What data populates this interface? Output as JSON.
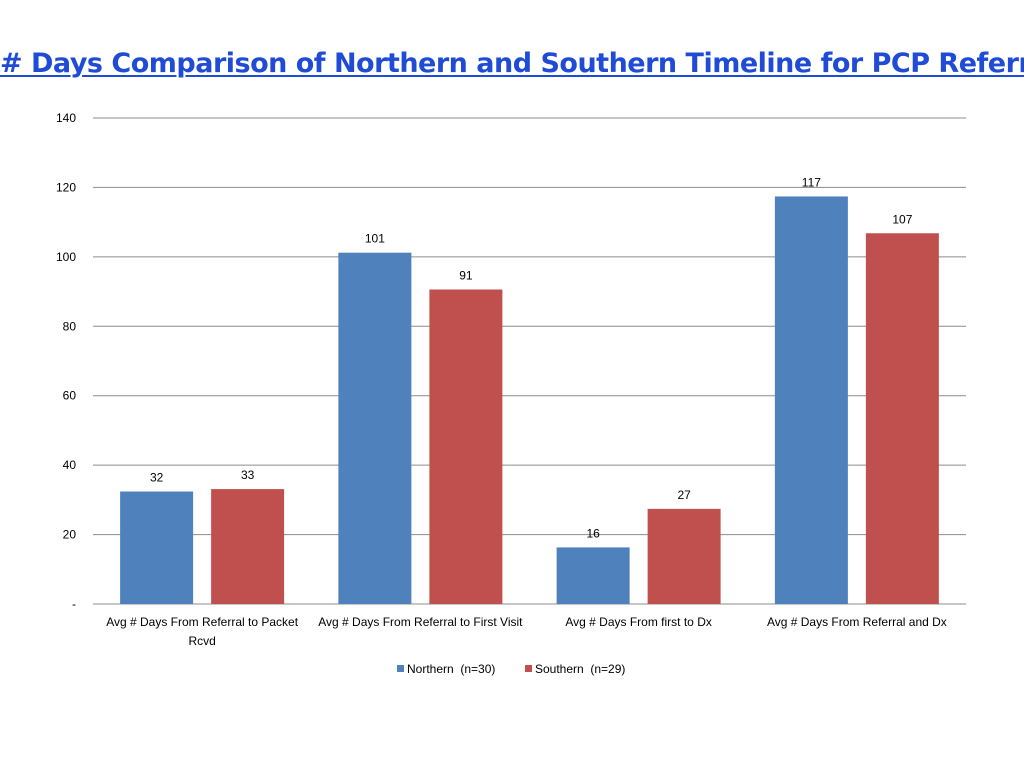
{
  "title": "# Days Comparison of Northern and Southern Timeline for PCP Referrals",
  "chart_data": {
    "type": "bar",
    "title": "# Days Comparison of Northern and Southern Timeline for PCP Referrals",
    "categories": [
      [
        "Avg # Days From Referral to Packet",
        "Rcvd"
      ],
      [
        "Avg # Days From Referral to First Visit"
      ],
      [
        "Avg # Days From first to Dx"
      ],
      [
        "Avg # Days From Referral and Dx"
      ]
    ],
    "series": [
      {
        "name": "Northern  (n=30)",
        "color": "#4f81bd",
        "values": [
          32.4,
          101.2,
          16.3,
          117.4
        ],
        "labels": [
          "32",
          "101",
          "16",
          "117"
        ]
      },
      {
        "name": "Southern  (n=29)",
        "color": "#c0504d",
        "values": [
          33.1,
          90.6,
          27.4,
          106.8
        ],
        "labels": [
          "33",
          "91",
          "27",
          "107"
        ]
      }
    ],
    "ylim": [
      0,
      140
    ],
    "yticks": [
      0,
      20,
      40,
      60,
      80,
      100,
      120,
      140
    ],
    "ytick_labels": [
      "-",
      "20",
      "40",
      "60",
      "80",
      "100",
      "120",
      "140"
    ],
    "grid": true,
    "legend": "bottom",
    "gridline_color": "#8c8c8c"
  }
}
